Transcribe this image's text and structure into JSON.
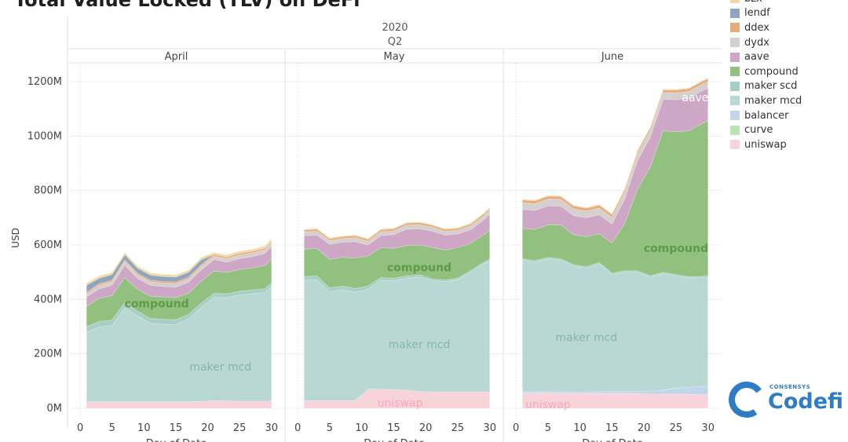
{
  "title": "Total Value Locked (TLV) on DeFi",
  "legend": [
    {
      "name": "bzx",
      "color": "#f3d9a0"
    },
    {
      "name": "lendf",
      "color": "#8ea4c0"
    },
    {
      "name": "ddex",
      "color": "#e7ac79"
    },
    {
      "name": "dydx",
      "color": "#d5d0cf"
    },
    {
      "name": "aave",
      "color": "#cfa7c6"
    },
    {
      "name": "compound",
      "color": "#92c17f"
    },
    {
      "name": "maker scd",
      "color": "#a7cfc4"
    },
    {
      "name": "maker mcd",
      "color": "#b9d8d3"
    },
    {
      "name": "balancer",
      "color": "#c1d6ea"
    },
    {
      "name": "curve",
      "color": "#bde0b5"
    },
    {
      "name": "uniswap",
      "color": "#f8d3dc"
    }
  ],
  "logo": {
    "small": "CONSENSYS",
    "word": "Codefi"
  },
  "chart_data": {
    "type": "area",
    "stacked": true,
    "title": "Total Value Locked (TLV) on DeFi",
    "header": {
      "year": "2020",
      "quarter": "Q2"
    },
    "ylabel": "USD",
    "xlabel": "Day of Date",
    "ylim": [
      0,
      1260
    ],
    "yticks": [
      {
        "value": 0,
        "label": "0M"
      },
      {
        "value": 200,
        "label": "200M"
      },
      {
        "value": 400,
        "label": "400M"
      },
      {
        "value": 600,
        "label": "600M"
      },
      {
        "value": 800,
        "label": "800M"
      },
      {
        "value": 1000,
        "label": "1000M"
      },
      {
        "value": 1200,
        "label": "1200M"
      }
    ],
    "xticks": [
      0,
      5,
      10,
      15,
      20,
      25,
      30
    ],
    "xlim": [
      -1,
      32
    ],
    "grid": true,
    "legend_position": "right",
    "panels": [
      {
        "name": "April",
        "x": [
          1,
          3,
          5,
          7,
          9,
          11,
          13,
          15,
          17,
          19,
          21,
          23,
          25,
          27,
          29,
          30
        ],
        "series": [
          {
            "name": "uniswap",
            "values": [
              24,
              24,
              24,
              24,
              24,
              24,
              24,
              24,
              24,
              26,
              28,
              27,
              26,
              26,
              26,
              27
            ]
          },
          {
            "name": "maker mcd",
            "values": [
              255,
              275,
              280,
              345,
              315,
              288,
              285,
              283,
              305,
              345,
              380,
              380,
              390,
              395,
              400,
              420
            ]
          },
          {
            "name": "maker scd",
            "values": [
              20,
              20,
              20,
              20,
              18,
              18,
              18,
              18,
              16,
              16,
              14,
              14,
              14,
              14,
              14,
              14
            ]
          },
          {
            "name": "compound",
            "values": [
              75,
              85,
              90,
              92,
              80,
              82,
              82,
              82,
              78,
              80,
              82,
              78,
              80,
              80,
              84,
              88
            ]
          },
          {
            "name": "aave",
            "values": [
              35,
              35,
              38,
              45,
              40,
              40,
              38,
              38,
              40,
              42,
              42,
              38,
              40,
              42,
              45,
              47
            ]
          },
          {
            "name": "dydx",
            "values": [
              12,
              13,
              13,
              14,
              13,
              13,
              13,
              13,
              13,
              13,
              13,
              13,
              14,
              14,
              14,
              14
            ]
          },
          {
            "name": "ddex",
            "values": [
              6,
              6,
              6,
              6,
              6,
              6,
              6,
              6,
              6,
              6,
              6,
              6,
              6,
              6,
              6,
              6
            ]
          },
          {
            "name": "lendf",
            "values": [
              25,
              20,
              20,
              18,
              18,
              18,
              18,
              18,
              18,
              18,
              0,
              0,
              0,
              0,
              0,
              0
            ]
          },
          {
            "name": "bzx",
            "values": [
              8,
              8,
              8,
              8,
              8,
              8,
              8,
              8,
              8,
              8,
              7,
              7,
              7,
              7,
              7,
              7
            ]
          },
          {
            "name": "balancer",
            "values": [
              0,
              0,
              0,
              0,
              0,
              0,
              0,
              0,
              0,
              0,
              0,
              0,
              0,
              0,
              0,
              0
            ]
          },
          {
            "name": "curve",
            "values": [
              0,
              0,
              0,
              0,
              0,
              0,
              0,
              0,
              0,
              0,
              0,
              0,
              0,
              0,
              0,
              0
            ]
          }
        ],
        "labels": [
          {
            "series": "compound",
            "text": "compound",
            "x": 12,
            "y": 382
          },
          {
            "series": "maker mcd",
            "text": "maker mcd",
            "x": 22,
            "y": 150
          }
        ]
      },
      {
        "name": "May",
        "x": [
          1,
          3,
          5,
          7,
          9,
          11,
          13,
          15,
          17,
          19,
          21,
          23,
          25,
          27,
          29,
          30
        ],
        "series": [
          {
            "name": "uniswap",
            "values": [
              28,
              28,
              28,
              28,
              28,
              70,
              70,
              68,
              66,
              62,
              60,
              60,
              60,
              60,
              60,
              60
            ]
          },
          {
            "name": "maker mcd",
            "values": [
              442,
              445,
              400,
              408,
              398,
              368,
              400,
              400,
              412,
              420,
              410,
              405,
              412,
              440,
              470,
              482
            ]
          },
          {
            "name": "maker scd",
            "values": [
              14,
              14,
              14,
              14,
              14,
              12,
              10,
              10,
              8,
              8,
              6,
              6,
              6,
              6,
              6,
              6
            ]
          },
          {
            "name": "compound",
            "values": [
              100,
              100,
              105,
              105,
              112,
              110,
              110,
              110,
              112,
              110,
              115,
              110,
              112,
              100,
              100,
              105
            ]
          },
          {
            "name": "aave",
            "values": [
              50,
              50,
              55,
              55,
              60,
              40,
              45,
              50,
              60,
              60,
              60,
              55,
              50,
              50,
              55,
              60
            ]
          },
          {
            "name": "dydx",
            "values": [
              14,
              14,
              14,
              14,
              15,
              14,
              14,
              14,
              15,
              15,
              15,
              14,
              14,
              14,
              15,
              15
            ]
          },
          {
            "name": "ddex",
            "values": [
              7,
              7,
              7,
              7,
              7,
              7,
              7,
              7,
              7,
              7,
              7,
              7,
              7,
              7,
              7,
              7
            ]
          },
          {
            "name": "balancer",
            "values": [
              0,
              0,
              0,
              0,
              0,
              0,
              0,
              0,
              0,
              0,
              0,
              0,
              0,
              0,
              0,
              0
            ]
          },
          {
            "name": "curve",
            "values": [
              0,
              0,
              0,
              0,
              0,
              0,
              0,
              0,
              0,
              0,
              0,
              0,
              0,
              0,
              0,
              0
            ]
          },
          {
            "name": "lendf",
            "values": [
              0,
              0,
              0,
              0,
              0,
              0,
              0,
              0,
              0,
              0,
              0,
              0,
              0,
              0,
              0,
              0
            ]
          },
          {
            "name": "bzx",
            "values": [
              3,
              3,
              3,
              3,
              3,
              3,
              3,
              3,
              3,
              3,
              3,
              3,
              3,
              3,
              3,
              3
            ]
          }
        ],
        "labels": [
          {
            "series": "compound",
            "text": "compound",
            "x": 19,
            "y": 515
          },
          {
            "series": "maker mcd",
            "text": "maker mcd",
            "x": 19,
            "y": 232
          },
          {
            "series": "uniswap",
            "text": "uniswap",
            "x": 16,
            "y": 18
          }
        ]
      },
      {
        "name": "June",
        "x": [
          1,
          3,
          5,
          7,
          9,
          11,
          13,
          15,
          17,
          19,
          21,
          23,
          25,
          27,
          29,
          30
        ],
        "series": [
          {
            "name": "uniswap",
            "values": [
              55,
              56,
              56,
              55,
              55,
              54,
              55,
              55,
              55,
              54,
              52,
              52,
              52,
              52,
              50,
              50
            ]
          },
          {
            "name": "balancer",
            "values": [
              5,
              5,
              5,
              5,
              5,
              6,
              6,
              7,
              7,
              8,
              10,
              15,
              22,
              25,
              30,
              30
            ]
          },
          {
            "name": "maker mcd",
            "values": [
              485,
              476,
              488,
              484,
              463,
              455,
              470,
              430,
              438,
              438,
              420,
              428,
              412,
              402,
              400,
              401
            ]
          },
          {
            "name": "maker scd",
            "values": [
              5,
              5,
              5,
              5,
              5,
              5,
              5,
              5,
              5,
              5,
              5,
              5,
              5,
              5,
              5,
              5
            ]
          },
          {
            "name": "compound",
            "values": [
              110,
              115,
              120,
              125,
              110,
              110,
              105,
              110,
              175,
              300,
              400,
              520,
              525,
              535,
              560,
              570
            ]
          },
          {
            "name": "aave",
            "values": [
              70,
              70,
              70,
              68,
              70,
              70,
              70,
              70,
              90,
              105,
              110,
              115,
              118,
              120,
              120,
              120
            ]
          },
          {
            "name": "dydx",
            "values": [
              25,
              25,
              25,
              26,
              25,
              25,
              25,
              25,
              25,
              25,
              25,
              25,
              25,
              25,
              25,
              25
            ]
          },
          {
            "name": "ddex",
            "values": [
              10,
              10,
              10,
              10,
              10,
              10,
              10,
              10,
              10,
              10,
              10,
              10,
              10,
              10,
              10,
              10
            ]
          },
          {
            "name": "curve",
            "values": [
              0,
              0,
              0,
              0,
              0,
              0,
              0,
              0,
              0,
              0,
              0,
              0,
              0,
              0,
              0,
              0
            ]
          },
          {
            "name": "lendf",
            "values": [
              0,
              0,
              0,
              0,
              0,
              0,
              0,
              0,
              0,
              0,
              0,
              0,
              0,
              0,
              0,
              0
            ]
          },
          {
            "name": "bzx",
            "values": [
              3,
              3,
              3,
              3,
              3,
              3,
              3,
              3,
              3,
              3,
              3,
              3,
              3,
              3,
              3,
              3
            ]
          }
        ],
        "labels": [
          {
            "series": "aave",
            "text": "aave",
            "x": 28,
            "y": 1140
          },
          {
            "series": "compound",
            "text": "compound",
            "x": 25,
            "y": 585
          },
          {
            "series": "maker mcd",
            "text": "maker mcd",
            "x": 11,
            "y": 258
          },
          {
            "series": "uniswap",
            "text": "uniswap",
            "x": 5,
            "y": 12
          }
        ]
      }
    ]
  }
}
